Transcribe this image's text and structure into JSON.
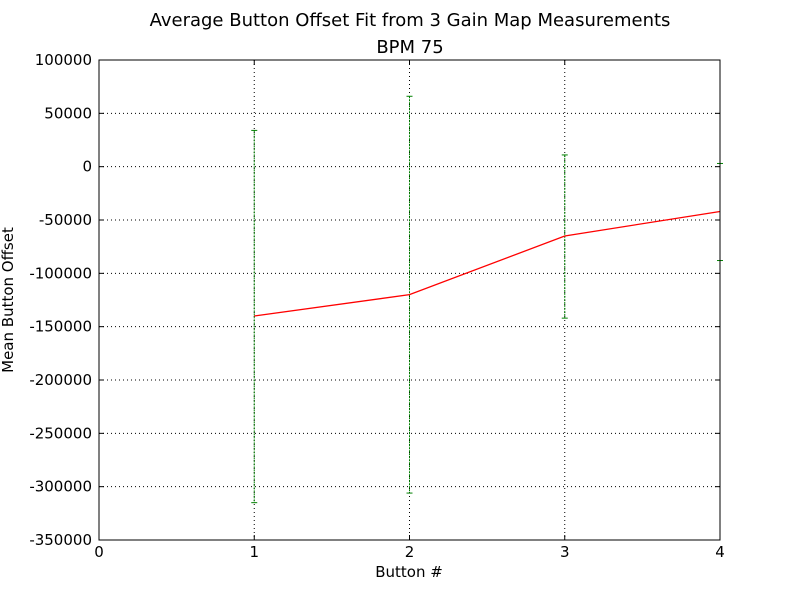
{
  "chart_data": {
    "type": "line",
    "title": "Average Button Offset Fit from 3 Gain Map Measurements",
    "subtitle": "BPM 75",
    "xlabel": "Button #",
    "ylabel": "Mean Button Offset",
    "xlim": [
      0,
      4
    ],
    "ylim": [
      -350000,
      100000
    ],
    "xticks": [
      0,
      1,
      2,
      3,
      4
    ],
    "yticks": [
      100000,
      50000,
      0,
      -50000,
      -100000,
      -150000,
      -200000,
      -250000,
      -300000,
      -350000
    ],
    "grid": true,
    "series": [
      {
        "x": [
          1,
          2,
          3,
          4
        ],
        "y": [
          -140000,
          -120000,
          -65000,
          -42000
        ],
        "yerr_low": [
          -315000,
          -306000,
          -142000,
          -88000
        ],
        "yerr_high": [
          34000,
          66000,
          11000,
          3000
        ],
        "color": "#ff0000",
        "error_color": "#008000"
      }
    ]
  }
}
